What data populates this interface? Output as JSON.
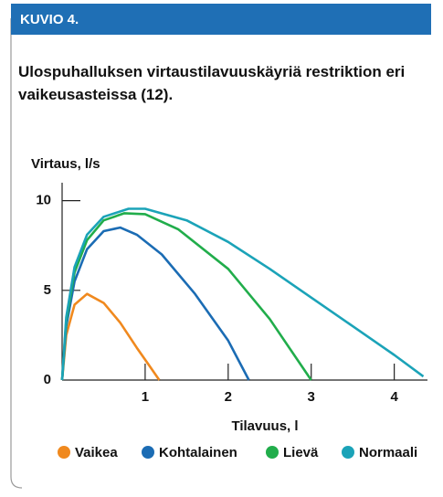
{
  "header": {
    "label": "KUVIO 4."
  },
  "chart_data": {
    "type": "line",
    "title": "Ulospuhalluksen virtaustilavuuskäyriä restriktion eri vaikeusasteissa (12).",
    "y_label": "Virtaus, l/s",
    "x_label": "Tilavuus, l",
    "xlim": [
      0,
      4.4
    ],
    "ylim": [
      0,
      11
    ],
    "xticks": [
      1,
      2,
      3,
      4
    ],
    "yticks": [
      0,
      5,
      10
    ],
    "grid": false,
    "series": [
      {
        "name": "Vaikea",
        "color": "#f0891e",
        "x": [
          0,
          0.05,
          0.15,
          0.3,
          0.5,
          0.7,
          0.9,
          1.05,
          1.17
        ],
        "values": [
          0,
          2.5,
          4.2,
          4.8,
          4.3,
          3.2,
          1.8,
          0.8,
          0
        ]
      },
      {
        "name": "Kohtalainen",
        "color": "#1b6cb4",
        "x": [
          0,
          0.05,
          0.15,
          0.3,
          0.5,
          0.7,
          0.9,
          1.2,
          1.6,
          2.0,
          2.25
        ],
        "values": [
          0,
          3,
          5.5,
          7.3,
          8.3,
          8.5,
          8.1,
          7,
          4.8,
          2.2,
          0
        ]
      },
      {
        "name": "Lievä",
        "color": "#21ad4b",
        "x": [
          0,
          0.05,
          0.15,
          0.3,
          0.5,
          0.75,
          1.0,
          1.4,
          2.0,
          2.5,
          3.0
        ],
        "values": [
          0,
          3.3,
          6,
          7.8,
          8.9,
          9.3,
          9.25,
          8.4,
          6.2,
          3.4,
          0
        ]
      },
      {
        "name": "Normaali",
        "color": "#1ba3b8",
        "x": [
          0,
          0.05,
          0.15,
          0.3,
          0.5,
          0.8,
          1.0,
          1.5,
          2.0,
          2.5,
          3.0,
          3.5,
          4.0,
          4.35
        ],
        "values": [
          0,
          3.5,
          6.3,
          8.1,
          9.1,
          9.55,
          9.55,
          8.9,
          7.7,
          6.2,
          4.6,
          3.0,
          1.4,
          0.2
        ]
      }
    ]
  }
}
